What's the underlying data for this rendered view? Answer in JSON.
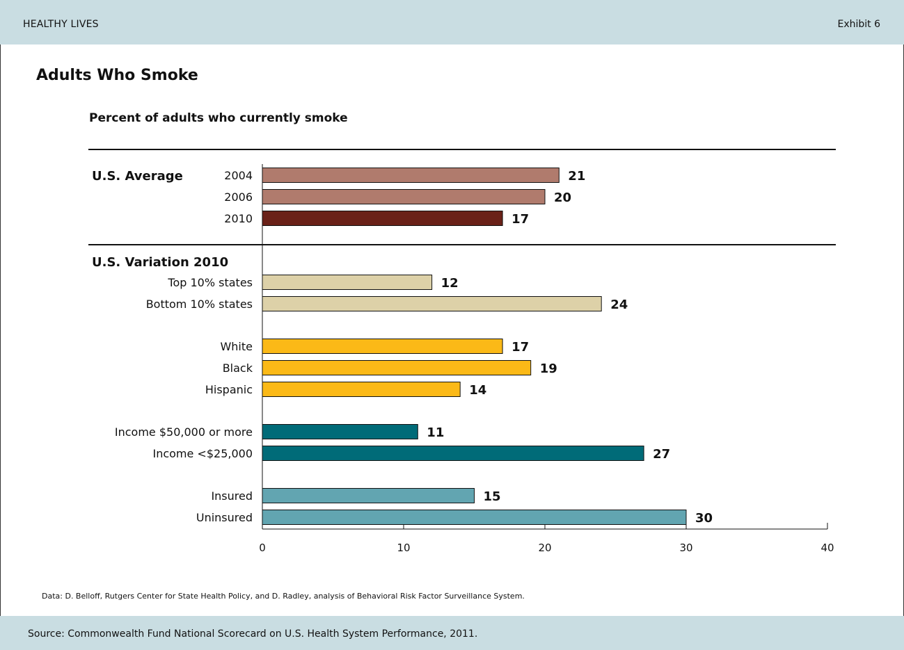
{
  "header": {
    "left": "HEALTHY LIVES",
    "right": "Exhibit 6"
  },
  "title": "Adults Who Smoke",
  "subtitle": "Percent of adults who currently smoke",
  "data_note": "Data: D. Belloff, Rutgers Center for State Health Policy, and D. Radley, analysis of Behavioral Risk Factor Surveillance System.",
  "footer": {
    "source": "Source: Commonwealth Fund National Scorecard on U.S. Health System Performance, 2011."
  },
  "colors": {
    "avg_past": "#b07b6d",
    "avg_2010": "#6a2118",
    "states": "#ddd1a8",
    "race": "#fbb917",
    "income": "#006b78",
    "insurance": "#62a5b1"
  },
  "chart_data": {
    "type": "bar",
    "orientation": "horizontal",
    "title": "Adults Who Smoke",
    "subtitle": "Percent of adults who currently smoke",
    "xlim": [
      0,
      40
    ],
    "xticks": [
      0,
      10,
      20,
      30,
      40
    ],
    "groups": [
      {
        "label": "U.S. Average",
        "bars": [
          {
            "label": "2004",
            "value": 21,
            "color": "#b07b6d"
          },
          {
            "label": "2006",
            "value": 20,
            "color": "#b07b6d"
          },
          {
            "label": "2010",
            "value": 17,
            "color": "#6a2118"
          }
        ]
      },
      {
        "label": "U.S. Variation 2010",
        "bars": [
          {
            "label": "Top 10% states",
            "value": 12,
            "color": "#ddd1a8"
          },
          {
            "label": "Bottom 10% states",
            "value": 24,
            "color": "#ddd1a8"
          },
          {
            "label": "White",
            "value": 17,
            "color": "#fbb917"
          },
          {
            "label": "Black",
            "value": 19,
            "color": "#fbb917"
          },
          {
            "label": "Hispanic",
            "value": 14,
            "color": "#fbb917"
          },
          {
            "label": "Income $50,000 or more",
            "value": 11,
            "color": "#006b78"
          },
          {
            "label": "Income <$25,000",
            "value": 27,
            "color": "#006b78"
          },
          {
            "label": "Insured",
            "value": 15,
            "color": "#62a5b1"
          },
          {
            "label": "Uninsured",
            "value": 30,
            "color": "#62a5b1"
          }
        ]
      }
    ]
  }
}
